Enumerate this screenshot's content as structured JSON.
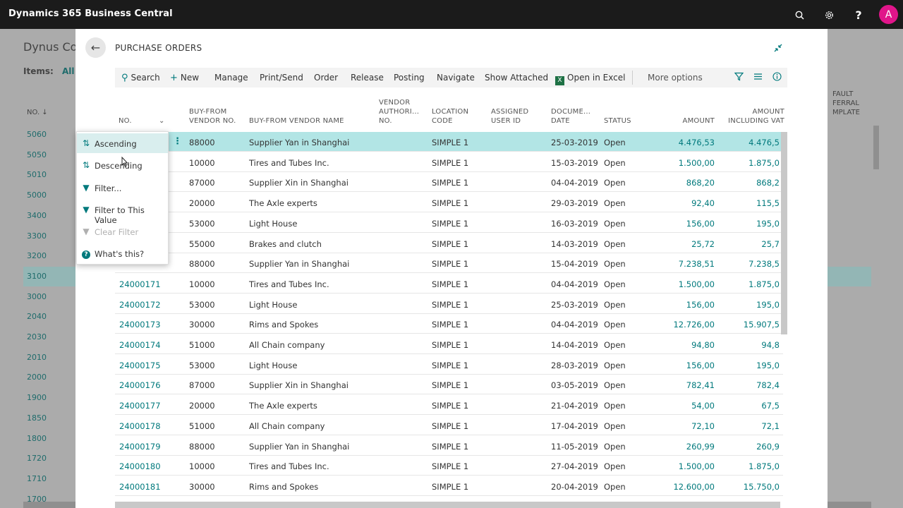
{
  "app": {
    "title": "Dynamics 365 Business Central",
    "avatar_initial": "A",
    "icons": [
      "search-icon",
      "gear-icon",
      "help-icon"
    ]
  },
  "background_page": {
    "title": "Dynus Co",
    "items_label": "Items:",
    "items_filter": "All",
    "col_no": "NO.",
    "col_right": [
      "FAULT",
      "FERRAL",
      "MPLATE"
    ],
    "numbers": [
      "5060",
      "5050",
      "5010",
      "5000",
      "3400",
      "3300",
      "3200",
      "3100",
      "3000",
      "2040",
      "2030",
      "2010",
      "2000",
      "1900",
      "1850",
      "1800",
      "1720",
      "1710",
      "1700"
    ]
  },
  "modal": {
    "title": "PURCHASE ORDERS",
    "toolbar": {
      "search": "Search",
      "new": "New",
      "manage": "Manage",
      "print_send": "Print/Send",
      "order": "Order",
      "release": "Release",
      "posting": "Posting",
      "navigate": "Navigate",
      "show_attached": "Show Attached",
      "open_in_excel": "Open in Excel",
      "more_options": "More options"
    },
    "columns": {
      "no": "NO.",
      "vendor_no": [
        "BUY-FROM",
        "VENDOR NO."
      ],
      "vendor_name": "BUY-FROM VENDOR NAME",
      "vendor_auth": [
        "VENDOR",
        "AUTHORI...",
        "NO."
      ],
      "location": [
        "LOCATION",
        "CODE"
      ],
      "assigned": [
        "ASSIGNED",
        "USER ID"
      ],
      "doc_date": [
        "DOCUME...",
        "DATE"
      ],
      "status": "STATUS",
      "amount": "AMOUNT",
      "amount_vat": [
        "AMOUNT",
        "INCLUDING VAT"
      ]
    },
    "rows": [
      {
        "no": "",
        "vendor_no": "88000",
        "vendor_name": "Supplier Yan in Shanghai",
        "location": "SIMPLE 1",
        "date": "25-03-2019",
        "status": "Open",
        "amount": "4.476,53",
        "amount_vat": "4.476,5"
      },
      {
        "no": "",
        "vendor_no": "10000",
        "vendor_name": "Tires and Tubes Inc.",
        "location": "SIMPLE 1",
        "date": "15-03-2019",
        "status": "Open",
        "amount": "1.500,00",
        "amount_vat": "1.875,0"
      },
      {
        "no": "",
        "vendor_no": "87000",
        "vendor_name": "Supplier Xin in Shanghai",
        "location": "SIMPLE 1",
        "date": "04-04-2019",
        "status": "Open",
        "amount": "868,20",
        "amount_vat": "868,2"
      },
      {
        "no": "",
        "vendor_no": "20000",
        "vendor_name": "The Axle experts",
        "location": "SIMPLE 1",
        "date": "29-03-2019",
        "status": "Open",
        "amount": "92,40",
        "amount_vat": "115,5"
      },
      {
        "no": "",
        "vendor_no": "53000",
        "vendor_name": "Light House",
        "location": "SIMPLE 1",
        "date": "16-03-2019",
        "status": "Open",
        "amount": "156,00",
        "amount_vat": "195,0"
      },
      {
        "no": "",
        "vendor_no": "55000",
        "vendor_name": "Brakes and clutch",
        "location": "SIMPLE 1",
        "date": "14-03-2019",
        "status": "Open",
        "amount": "25,72",
        "amount_vat": "25,7"
      },
      {
        "no": "",
        "vendor_no": "88000",
        "vendor_name": "Supplier Yan in Shanghai",
        "location": "SIMPLE 1",
        "date": "15-04-2019",
        "status": "Open",
        "amount": "7.238,51",
        "amount_vat": "7.238,5"
      },
      {
        "no": "24000171",
        "vendor_no": "10000",
        "vendor_name": "Tires and Tubes Inc.",
        "location": "SIMPLE 1",
        "date": "04-04-2019",
        "status": "Open",
        "amount": "1.500,00",
        "amount_vat": "1.875,0"
      },
      {
        "no": "24000172",
        "vendor_no": "53000",
        "vendor_name": "Light House",
        "location": "SIMPLE 1",
        "date": "25-03-2019",
        "status": "Open",
        "amount": "156,00",
        "amount_vat": "195,0"
      },
      {
        "no": "24000173",
        "vendor_no": "30000",
        "vendor_name": "Rims and Spokes",
        "location": "SIMPLE 1",
        "date": "04-04-2019",
        "status": "Open",
        "amount": "12.726,00",
        "amount_vat": "15.907,5"
      },
      {
        "no": "24000174",
        "vendor_no": "51000",
        "vendor_name": "All Chain company",
        "location": "SIMPLE 1",
        "date": "14-04-2019",
        "status": "Open",
        "amount": "94,80",
        "amount_vat": "94,8"
      },
      {
        "no": "24000175",
        "vendor_no": "53000",
        "vendor_name": "Light House",
        "location": "SIMPLE 1",
        "date": "28-03-2019",
        "status": "Open",
        "amount": "156,00",
        "amount_vat": "195,0"
      },
      {
        "no": "24000176",
        "vendor_no": "87000",
        "vendor_name": "Supplier Xin in Shanghai",
        "location": "SIMPLE 1",
        "date": "03-05-2019",
        "status": "Open",
        "amount": "782,41",
        "amount_vat": "782,4"
      },
      {
        "no": "24000177",
        "vendor_no": "20000",
        "vendor_name": "The Axle experts",
        "location": "SIMPLE 1",
        "date": "21-04-2019",
        "status": "Open",
        "amount": "54,00",
        "amount_vat": "67,5"
      },
      {
        "no": "24000178",
        "vendor_no": "51000",
        "vendor_name": "All Chain company",
        "location": "SIMPLE 1",
        "date": "17-04-2019",
        "status": "Open",
        "amount": "72,10",
        "amount_vat": "72,1"
      },
      {
        "no": "24000179",
        "vendor_no": "88000",
        "vendor_name": "Supplier Yan in Shanghai",
        "location": "SIMPLE 1",
        "date": "11-05-2019",
        "status": "Open",
        "amount": "260,99",
        "amount_vat": "260,9"
      },
      {
        "no": "24000180",
        "vendor_no": "10000",
        "vendor_name": "Tires and Tubes Inc.",
        "location": "SIMPLE 1",
        "date": "27-04-2019",
        "status": "Open",
        "amount": "1.500,00",
        "amount_vat": "1.875,0"
      },
      {
        "no": "24000181",
        "vendor_no": "30000",
        "vendor_name": "Rims and Spokes",
        "location": "SIMPLE 1",
        "date": "20-04-2019",
        "status": "Open",
        "amount": "12.600,00",
        "amount_vat": "15.750,0"
      }
    ]
  },
  "column_menu": {
    "items": [
      {
        "label": "Ascending",
        "icon": "sort-ascending-icon",
        "enabled": true,
        "highlighted": true
      },
      {
        "label": "Descending",
        "icon": "sort-descending-icon",
        "enabled": true
      },
      {
        "label": "Filter...",
        "icon": "filter-icon",
        "enabled": true
      },
      {
        "label": "Filter to This Value",
        "icon": "filter-icon",
        "enabled": true
      },
      {
        "label": "Clear Filter",
        "icon": "clear-filter-icon",
        "enabled": false
      },
      {
        "label": "What's this?",
        "icon": "help-circle-icon",
        "enabled": true
      }
    ]
  },
  "colors": {
    "accent": "#00797c",
    "selected_row": "#b2e5e5",
    "appbar": "#1b1b1b",
    "avatar": "#e0158a"
  }
}
